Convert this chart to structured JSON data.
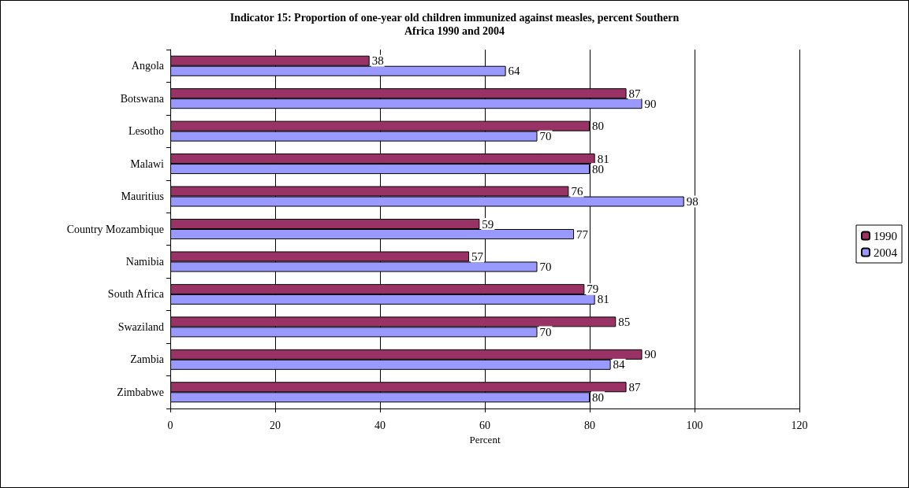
{
  "chart_data": {
    "type": "bar",
    "title": "Indicator 15: Proportion of one-year old children immunized against measles, percent Southern\nAfrica 1990 and 2004",
    "xlabel": "Percent",
    "categories": [
      "Angola",
      "Botswana",
      "Lesotho",
      "Malawi",
      "Mauritius",
      "Country Mozambique",
      "Namibia",
      "South Africa",
      "Swaziland",
      "Zambia",
      "Zimbabwe"
    ],
    "series": [
      {
        "name": "1990",
        "color": "#993366",
        "values": [
          38,
          87,
          80,
          81,
          76,
          59,
          57,
          79,
          85,
          90,
          87
        ]
      },
      {
        "name": "2004",
        "color": "#9999ff",
        "values": [
          64,
          90,
          70,
          80,
          98,
          77,
          70,
          81,
          70,
          84,
          80
        ]
      }
    ],
    "orientation": "horizontal",
    "xlim": [
      0,
      120
    ],
    "xticks": [
      0,
      20,
      40,
      60,
      80,
      100,
      120
    ],
    "grid": "x",
    "legend": "right",
    "data_labels": true
  }
}
